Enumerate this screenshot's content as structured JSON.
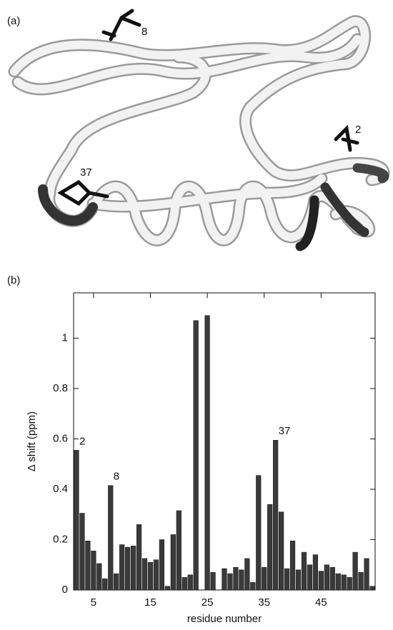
{
  "panel_a": {
    "label": "(a)",
    "residue_labels": [
      "8",
      "2",
      "37"
    ]
  },
  "chart_data": {
    "type": "bar",
    "panel_label": "(b)",
    "xlabel": "residue number",
    "ylabel": "Δ shift (ppm)",
    "x": [
      2,
      3,
      4,
      5,
      6,
      7,
      8,
      9,
      10,
      11,
      12,
      13,
      14,
      15,
      16,
      17,
      18,
      19,
      20,
      21,
      22,
      23,
      24,
      25,
      26,
      27,
      28,
      29,
      30,
      31,
      32,
      33,
      34,
      35,
      36,
      37,
      38,
      39,
      40,
      41,
      42,
      43,
      44,
      45,
      46,
      47,
      48,
      49,
      50,
      51,
      52,
      53,
      54
    ],
    "values": [
      0.555,
      0.305,
      0.195,
      0.155,
      0.105,
      0.045,
      0.415,
      0.065,
      0.18,
      0.17,
      0.175,
      0.26,
      0.125,
      0.11,
      0.12,
      0.2,
      0.015,
      0.22,
      0.315,
      0.05,
      0.06,
      1.07,
      null,
      1.09,
      0.07,
      null,
      0.085,
      0.065,
      0.09,
      0.08,
      0.125,
      0.03,
      0.455,
      0.09,
      0.34,
      0.595,
      0.31,
      0.085,
      0.195,
      0.08,
      0.15,
      0.1,
      0.14,
      0.075,
      0.1,
      0.09,
      0.065,
      0.06,
      0.05,
      0.15,
      0.07,
      0.125,
      0.015
    ],
    "color": "#3a3a3a",
    "xlim": [
      1.5,
      54.5
    ],
    "xticks": [
      5,
      15,
      25,
      35,
      45
    ],
    "ylim": [
      0,
      1.18
    ],
    "yticks": [
      0,
      0.2,
      0.4,
      0.6,
      0.8,
      1
    ],
    "annotations": [
      {
        "text": "2",
        "x": 2
      },
      {
        "text": "8",
        "x": 8
      },
      {
        "text": "37",
        "x": 37
      }
    ]
  }
}
